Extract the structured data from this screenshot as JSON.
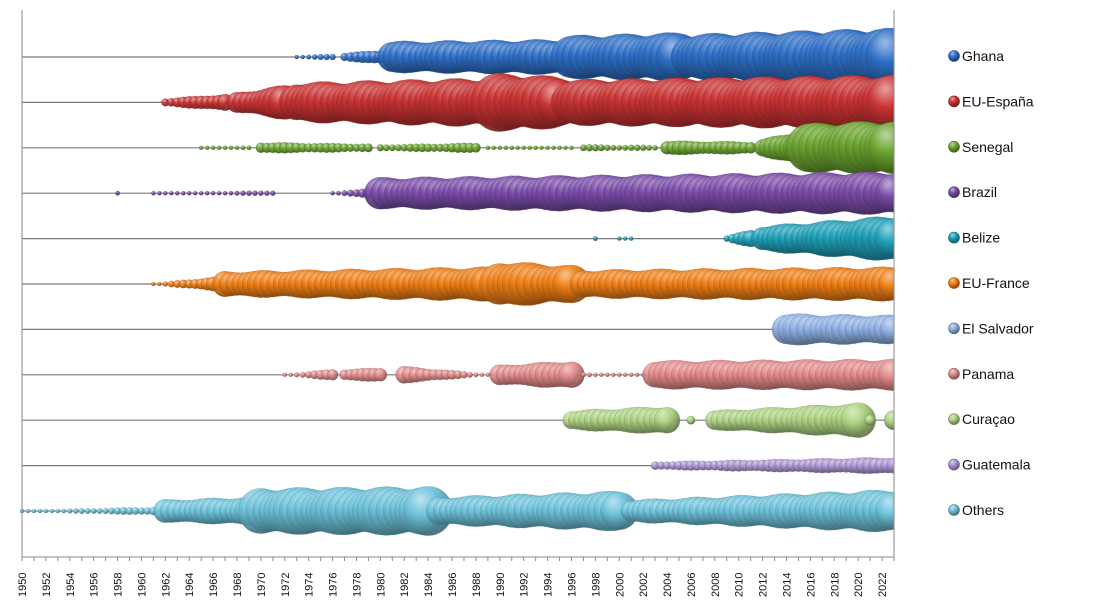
{
  "chart_data": {
    "type": "bubble-timeline",
    "title": "",
    "xlabel": "",
    "ylabel": "",
    "xlim": [
      1950,
      2023
    ],
    "x_ticks": [
      1950,
      1952,
      1954,
      1956,
      1958,
      1960,
      1962,
      1964,
      1966,
      1968,
      1970,
      1972,
      1974,
      1976,
      1978,
      1980,
      1982,
      1984,
      1986,
      1988,
      1990,
      1992,
      1994,
      1996,
      1998,
      2000,
      2002,
      2004,
      2006,
      2008,
      2010,
      2012,
      2014,
      2016,
      2018,
      2020,
      2022
    ],
    "grid": false,
    "legend_position": "right",
    "value_note": "relative bubble size, 0-1 scale (estimated)",
    "series": [
      {
        "name": "Ghana",
        "color": "#2e6fc7",
        "segments": [
          {
            "from": 1973,
            "to": 1976,
            "start": 0.06,
            "end": 0.12
          },
          {
            "from": 1977,
            "to": 1980,
            "start": 0.15,
            "end": 0.25
          },
          {
            "from": 1981,
            "to": 1995,
            "start": 0.55,
            "end": 0.62
          },
          {
            "from": 1996,
            "to": 2005,
            "start": 0.75,
            "end": 0.85
          },
          {
            "from": 2006,
            "to": 2023,
            "start": 0.8,
            "end": 1.0
          }
        ]
      },
      {
        "name": "EU-España",
        "color": "#c93333",
        "segments": [
          {
            "from": 1962,
            "to": 1967,
            "start": 0.15,
            "end": 0.3
          },
          {
            "from": 1968,
            "to": 1972,
            "start": 0.35,
            "end": 0.6
          },
          {
            "from": 1973,
            "to": 1989,
            "start": 0.7,
            "end": 0.85
          },
          {
            "from": 1990,
            "to": 1995,
            "start": 1.0,
            "end": 0.9
          },
          {
            "from": 1996,
            "to": 2023,
            "start": 0.8,
            "end": 0.95
          }
        ]
      },
      {
        "name": "Senegal",
        "color": "#6ca431",
        "segments": [
          {
            "from": 1965,
            "to": 1969,
            "start": 0.04,
            "end": 0.08
          },
          {
            "from": 1970,
            "to": 1979,
            "start": 0.2,
            "end": 0.15
          },
          {
            "from": 1980,
            "to": 1988,
            "start": 0.12,
            "end": 0.18
          },
          {
            "from": 1989,
            "to": 1996,
            "start": 0.06,
            "end": 0.04
          },
          {
            "from": 1997,
            "to": 2003,
            "start": 0.12,
            "end": 0.1
          },
          {
            "from": 2004,
            "to": 2011,
            "start": 0.25,
            "end": 0.22
          },
          {
            "from": 2012,
            "to": 2015,
            "start": 0.3,
            "end": 0.6
          },
          {
            "from": 2016,
            "to": 2023,
            "start": 0.85,
            "end": 0.95
          }
        ]
      },
      {
        "name": "Brazil",
        "color": "#7a4ca8",
        "segments": [
          {
            "from": 1958,
            "to": 1958,
            "start": 0.04,
            "end": 0.04
          },
          {
            "from": 1961,
            "to": 1971,
            "start": 0.05,
            "end": 0.1
          },
          {
            "from": 1976,
            "to": 1979,
            "start": 0.05,
            "end": 0.2
          },
          {
            "from": 1980,
            "to": 2023,
            "start": 0.55,
            "end": 0.75
          }
        ]
      },
      {
        "name": "Belize",
        "color": "#1fa0b8",
        "segments": [
          {
            "from": 1998,
            "to": 1998,
            "start": 0.08,
            "end": 0.08
          },
          {
            "from": 2000,
            "to": 2001,
            "start": 0.04,
            "end": 0.04
          },
          {
            "from": 2009,
            "to": 2011,
            "start": 0.12,
            "end": 0.3
          },
          {
            "from": 2012,
            "to": 2023,
            "start": 0.45,
            "end": 0.8
          }
        ]
      },
      {
        "name": "EU-France",
        "color": "#ef7f16",
        "segments": [
          {
            "from": 1961,
            "to": 1966,
            "start": 0.05,
            "end": 0.25
          },
          {
            "from": 1967,
            "to": 1989,
            "start": 0.45,
            "end": 0.6
          },
          {
            "from": 1990,
            "to": 1996,
            "start": 0.8,
            "end": 0.65
          },
          {
            "from": 1997,
            "to": 2023,
            "start": 0.5,
            "end": 0.6
          }
        ]
      },
      {
        "name": "El Salvador",
        "color": "#8fb0e4",
        "segments": [
          {
            "from": 2014,
            "to": 2023,
            "start": 0.55,
            "end": 0.5
          }
        ]
      },
      {
        "name": "Panama",
        "color": "#e38a8a",
        "segments": [
          {
            "from": 1972,
            "to": 1976,
            "start": 0.06,
            "end": 0.2
          },
          {
            "from": 1977,
            "to": 1980,
            "start": 0.2,
            "end": 0.25
          },
          {
            "from": 1982,
            "to": 1989,
            "start": 0.3,
            "end": 0.06
          },
          {
            "from": 1990,
            "to": 1996,
            "start": 0.35,
            "end": 0.5
          },
          {
            "from": 1997,
            "to": 2002,
            "start": 0.08,
            "end": 0.06
          },
          {
            "from": 2003,
            "to": 2023,
            "start": 0.5,
            "end": 0.55
          }
        ]
      },
      {
        "name": "Curaçao",
        "color": "#aed383",
        "segments": [
          {
            "from": 1996,
            "to": 2004,
            "start": 0.35,
            "end": 0.5
          },
          {
            "from": 2006,
            "to": 2006,
            "start": 0.15,
            "end": 0.15
          },
          {
            "from": 2008,
            "to": 2020,
            "start": 0.35,
            "end": 0.6
          },
          {
            "from": 2021,
            "to": 2021,
            "start": 0.2,
            "end": 0.2
          },
          {
            "from": 2023,
            "to": 2023,
            "start": 0.35,
            "end": 0.35
          }
        ]
      },
      {
        "name": "Guatemala",
        "color": "#ab94d2",
        "segments": [
          {
            "from": 2003,
            "to": 2023,
            "start": 0.15,
            "end": 0.3
          }
        ]
      },
      {
        "name": "Others",
        "color": "#6fc4dc",
        "segments": [
          {
            "from": 1950,
            "to": 1961,
            "start": 0.05,
            "end": 0.15
          },
          {
            "from": 1962,
            "to": 1969,
            "start": 0.4,
            "end": 0.5
          },
          {
            "from": 1970,
            "to": 1984,
            "start": 0.8,
            "end": 0.85
          },
          {
            "from": 1985,
            "to": 2000,
            "start": 0.5,
            "end": 0.7
          },
          {
            "from": 2001,
            "to": 2023,
            "start": 0.4,
            "end": 0.75
          }
        ]
      }
    ]
  }
}
